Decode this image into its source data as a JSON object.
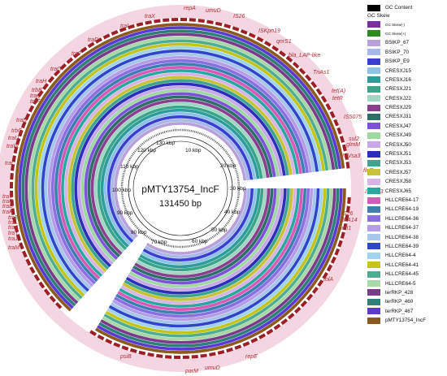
{
  "plasmid": {
    "name": "pMTY13754_IncF",
    "size_label": "131450 bp"
  },
  "kbp_labels": [
    "10 kbp",
    "20 kbp",
    "30 kbp",
    "40 kbp",
    "50 kbp",
    "60 kbp",
    "70 kbp",
    "80 kbp",
    "90 kbp",
    "100 kbp",
    "110 kbp",
    "120 kbp",
    "130 kbp"
  ],
  "gene_labels": [
    "repA",
    "umuD",
    "IS26",
    "ISKpn19",
    "qnrS1",
    "bla_LAP-like",
    "TnAs1",
    "tet(A)",
    "tetR",
    "IS5075",
    "sul2",
    "glmM",
    "ISVsa3",
    "floR",
    "ISVsa3",
    "IS26",
    "dfrA14",
    "intI1",
    "tolA",
    "repE",
    "umuD",
    "parM",
    "psiB",
    "traM",
    "traJ",
    "traY",
    "traA",
    "traL",
    "traE",
    "traK",
    "traB",
    "traP",
    "traV",
    "traC",
    "traW",
    "traU",
    "trbC",
    "traN",
    "traF",
    "traQ",
    "trbB",
    "traH",
    "traG",
    "traT",
    "traD",
    "traI",
    "traX"
  ],
  "legend": {
    "gc_content_label": "GC Content",
    "gc_skew_header": "GC Skew",
    "gc_skew_minus_label": "GC Skew(-)",
    "gc_skew_plus_label": "GC Skew(+)",
    "gc_content_color": "#000000",
    "gc_skew_minus_color": "#7b2fa6",
    "gc_skew_plus_color": "#2e8b1e",
    "tracks": [
      {
        "name": "BSIKP_67",
        "color": "#b8a0d8"
      },
      {
        "name": "BSIKP_70",
        "color": "#a8b8e8"
      },
      {
        "name": "BSIKP_E9",
        "color": "#3b3fd0"
      },
      {
        "name": "CRESXJ15",
        "color": "#8ec3e6"
      },
      {
        "name": "CRESXJ16",
        "color": "#2f9c9c"
      },
      {
        "name": "CRESXJ21",
        "color": "#3aa58a"
      },
      {
        "name": "CRESXJ22",
        "color": "#9fd6c4"
      },
      {
        "name": "CRESXJ29",
        "color": "#8a3f8f"
      },
      {
        "name": "CRESXJ31",
        "color": "#2f6f6a"
      },
      {
        "name": "CRESXJ47",
        "color": "#7c52d8"
      },
      {
        "name": "CRESXJ49",
        "color": "#9fd8a0"
      },
      {
        "name": "CRESXJ50",
        "color": "#c8a8e8"
      },
      {
        "name": "CRESXJ51",
        "color": "#2d2fb8"
      },
      {
        "name": "CRESXJ53",
        "color": "#3ea38f"
      },
      {
        "name": "CRESXJ57",
        "color": "#c6c23a"
      },
      {
        "name": "CRESXJ58",
        "color": "#d7b4e6"
      },
      {
        "name": "CRESXJ65",
        "color": "#2aa7a0"
      },
      {
        "name": "HLLCRE64-17",
        "color": "#d85ab8"
      },
      {
        "name": "HLLCRE64-19",
        "color": "#3c7fb0"
      },
      {
        "name": "HLLCRE64-36",
        "color": "#8a6fe0"
      },
      {
        "name": "HLLCRE64-37",
        "color": "#b59ce6"
      },
      {
        "name": "HLLCRE64-38",
        "color": "#a7c6ec"
      },
      {
        "name": "HLLCRE64-39",
        "color": "#2f46c8"
      },
      {
        "name": "HLLCRE64-4",
        "color": "#9fd3ee"
      },
      {
        "name": "HLLCRE64-41",
        "color": "#c4c41f"
      },
      {
        "name": "HLLCRE64-45",
        "color": "#4fae91"
      },
      {
        "name": "HLLCRE64-5",
        "color": "#a8d7a8"
      },
      {
        "name": "terRKP_428",
        "color": "#7a3c8a"
      },
      {
        "name": "terRKP_460",
        "color": "#2f7f79"
      },
      {
        "name": "terRKP_467",
        "color": "#5a3ad0"
      },
      {
        "name": "pMTY13754_IncF",
        "color": "#8b5a1e"
      }
    ]
  }
}
